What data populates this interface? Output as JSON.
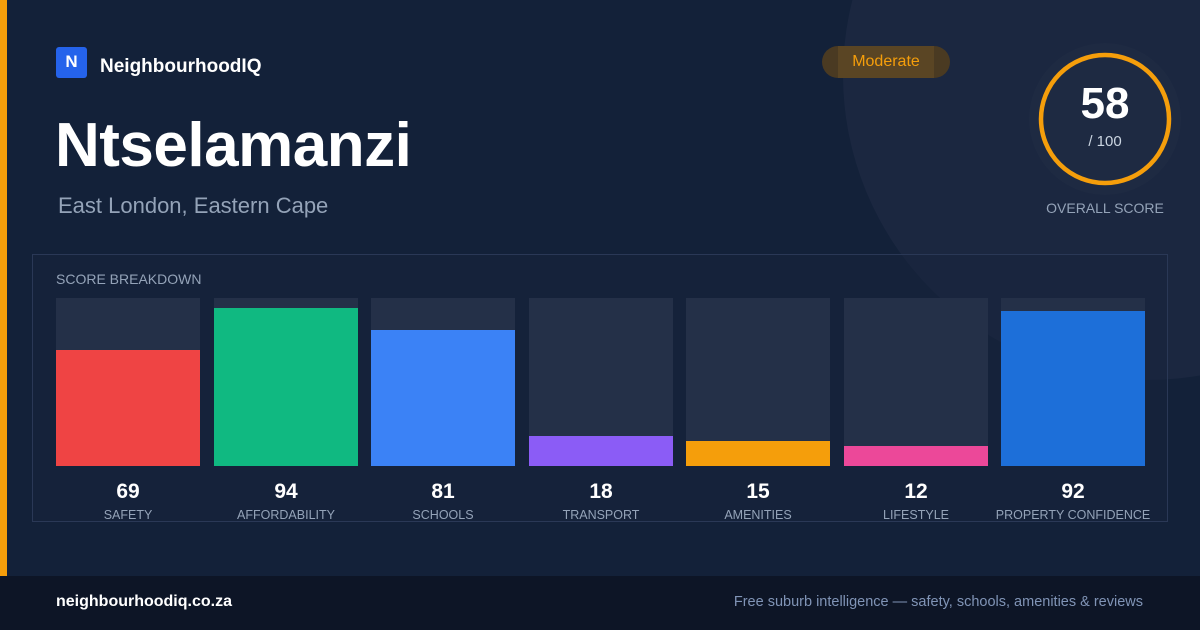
{
  "brand": {
    "logo_letter": "N",
    "name": "NeighbourhoodIQ"
  },
  "suburb": {
    "name": "Ntselamanzi",
    "location": "East London, Eastern Cape"
  },
  "badge": {
    "label": "Moderate"
  },
  "overall": {
    "score": "58",
    "max": "/ 100",
    "label": "OVERALL SCORE",
    "fraction": 0.58
  },
  "breakdown": {
    "title": "SCORE BREAKDOWN",
    "items": [
      {
        "label": "SAFETY",
        "value": "69",
        "color": "#ef4444"
      },
      {
        "label": "AFFORDABILITY",
        "value": "94",
        "color": "#10b981"
      },
      {
        "label": "SCHOOLS",
        "value": "81",
        "color": "#3b82f6"
      },
      {
        "label": "TRANSPORT",
        "value": "18",
        "color": "#8b5cf6"
      },
      {
        "label": "AMENITIES",
        "value": "15",
        "color": "#f59e0b"
      },
      {
        "label": "LIFESTYLE",
        "value": "12",
        "color": "#ec4899"
      },
      {
        "label": "PROPERTY CONFIDENCE",
        "value": "92",
        "color": "#1d6fd9"
      }
    ]
  },
  "footer": {
    "url": "neighbourhoodiq.co.za",
    "tagline": "Free suburb intelligence — safety, schools, amenities & reviews"
  },
  "colors": {
    "accent": "#f59e0b",
    "brand": "#2563eb",
    "background": "#132139"
  }
}
